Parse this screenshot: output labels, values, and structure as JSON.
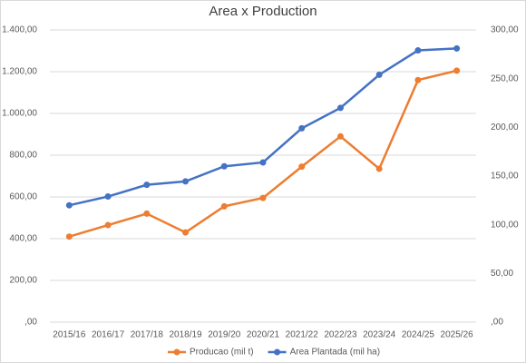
{
  "chart_data": {
    "type": "line",
    "title": "Area x Production",
    "categories": [
      "2015/16",
      "2016/17",
      "2017/18",
      "2018/19",
      "2019/20",
      "2020/21",
      "2021/22",
      "2022/23",
      "2023/24",
      "2024/25",
      "2025/26"
    ],
    "series": [
      {
        "name": "Producao (mil t)",
        "color": "#ed7d31",
        "values": [
          410,
          465,
          520,
          430,
          555,
          595,
          745,
          890,
          735,
          1160,
          1205
        ]
      },
      {
        "name": "Area Plantada (mil ha)",
        "color": "#4472c4",
        "axis": "y2",
        "values": [
          120,
          129,
          141,
          144.5,
          160,
          164,
          199,
          220,
          254,
          279,
          281
        ]
      }
    ],
    "ylim": [
      0,
      1400
    ],
    "yticks": [
      {
        "value": 0,
        "label": ",00"
      },
      {
        "value": 200,
        "label": "200,00"
      },
      {
        "value": 400,
        "label": "400,00"
      },
      {
        "value": 600,
        "label": "600,00"
      },
      {
        "value": 800,
        "label": "800,00"
      },
      {
        "value": 1000,
        "label": "1.000,00"
      },
      {
        "value": 1200,
        "label": "1.200,00"
      },
      {
        "value": 1400,
        "label": "1.400,00"
      }
    ],
    "y2lim": [
      0,
      300
    ],
    "y2ticks": [
      {
        "value": 0,
        "label": ",00"
      },
      {
        "value": 50,
        "label": "50,00"
      },
      {
        "value": 100,
        "label": "100,00"
      },
      {
        "value": 150,
        "label": "150,00"
      },
      {
        "value": 200,
        "label": "200,00"
      },
      {
        "value": 250,
        "label": "250,00"
      },
      {
        "value": 300,
        "label": "300,00"
      }
    ],
    "grid": true,
    "legend": "bottom"
  }
}
